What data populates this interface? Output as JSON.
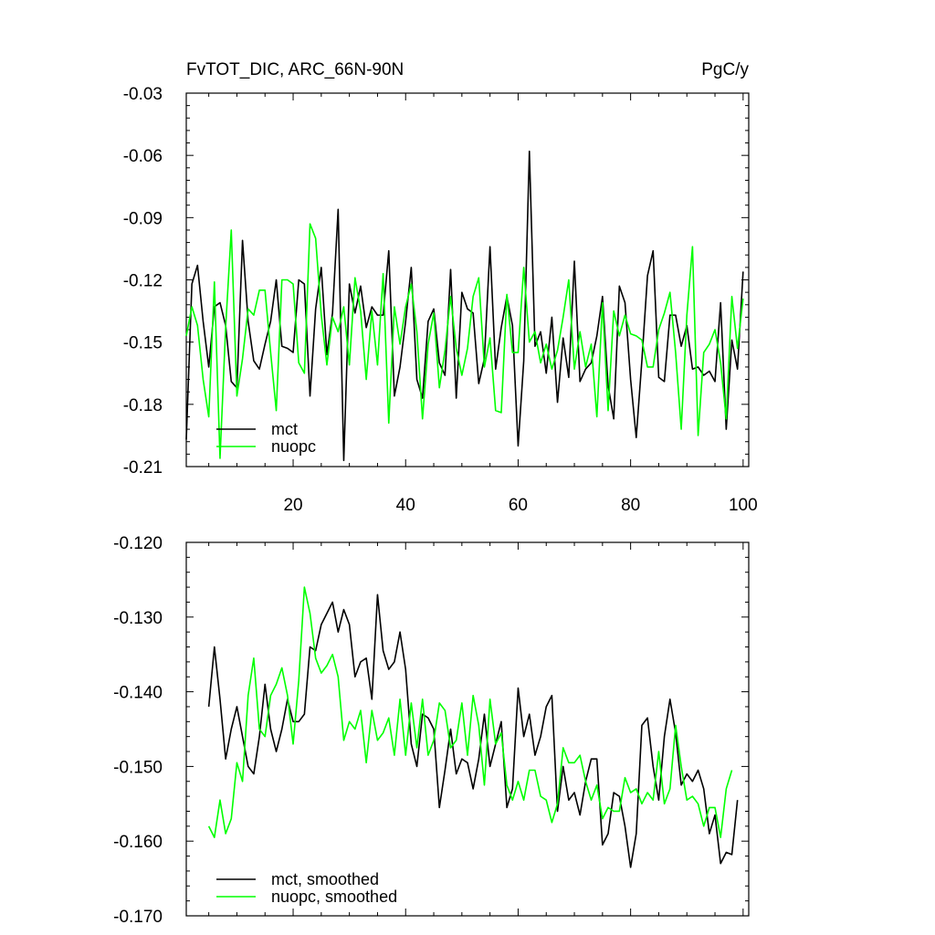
{
  "colors": {
    "mct": "#000000",
    "nuopc": "#00ff00",
    "axes": "#000000"
  },
  "chart_data": [
    {
      "type": "line",
      "title": "FvTOT_DIC, ARC_66N-90N",
      "units": "PgC/y",
      "xlim": [
        1,
        101
      ],
      "ylim": [
        -0.21,
        -0.03
      ],
      "yticks": [
        -0.21,
        -0.18,
        -0.15,
        -0.12,
        -0.09,
        -0.06,
        -0.03
      ],
      "ytick_labels": [
        "-0.21",
        "-0.18",
        "-0.15",
        "-0.12",
        "-0.09",
        "-0.06",
        "-0.03"
      ],
      "xticks": [
        20,
        40,
        60,
        80,
        100
      ],
      "xtick_labels": [
        "20",
        "40",
        "60",
        "80",
        "100"
      ],
      "legend_position": "bottom-left",
      "series": [
        {
          "name": "mct",
          "color": "#000000",
          "values": [
            -0.197,
            -0.122,
            -0.113,
            -0.14,
            -0.162,
            -0.133,
            -0.131,
            -0.142,
            -0.169,
            -0.172,
            -0.101,
            -0.14,
            -0.159,
            -0.163,
            -0.151,
            -0.14,
            -0.12,
            -0.152,
            -0.153,
            -0.155,
            -0.12,
            -0.122,
            -0.176,
            -0.134,
            -0.114,
            -0.156,
            -0.136,
            -0.086,
            -0.207,
            -0.122,
            -0.136,
            -0.123,
            -0.143,
            -0.133,
            -0.137,
            -0.137,
            -0.106,
            -0.176,
            -0.162,
            -0.14,
            -0.114,
            -0.168,
            -0.177,
            -0.14,
            -0.134,
            -0.16,
            -0.166,
            -0.115,
            -0.177,
            -0.126,
            -0.134,
            -0.136,
            -0.17,
            -0.158,
            -0.104,
            -0.163,
            -0.143,
            -0.128,
            -0.142,
            -0.2,
            -0.159,
            -0.058,
            -0.152,
            -0.145,
            -0.165,
            -0.138,
            -0.179,
            -0.148,
            -0.167,
            -0.111,
            -0.169,
            -0.163,
            -0.16,
            -0.147,
            -0.128,
            -0.171,
            -0.187,
            -0.123,
            -0.131,
            -0.168,
            -0.196,
            -0.159,
            -0.118,
            -0.106,
            -0.167,
            -0.169,
            -0.137,
            -0.137,
            -0.152,
            -0.142,
            -0.163,
            -0.162,
            -0.166,
            -0.164,
            -0.169,
            -0.131,
            -0.192,
            -0.149,
            -0.163,
            -0.116
          ]
        },
        {
          "name": "nuopc",
          "color": "#00ff00",
          "values": [
            -0.147,
            -0.133,
            -0.142,
            -0.168,
            -0.186,
            -0.121,
            -0.206,
            -0.143,
            -0.096,
            -0.176,
            -0.158,
            -0.134,
            -0.137,
            -0.125,
            -0.125,
            -0.155,
            -0.183,
            -0.12,
            -0.12,
            -0.122,
            -0.16,
            -0.165,
            -0.093,
            -0.1,
            -0.137,
            -0.161,
            -0.138,
            -0.145,
            -0.133,
            -0.161,
            -0.119,
            -0.135,
            -0.168,
            -0.135,
            -0.161,
            -0.117,
            -0.189,
            -0.133,
            -0.151,
            -0.133,
            -0.122,
            -0.145,
            -0.187,
            -0.151,
            -0.136,
            -0.172,
            -0.154,
            -0.128,
            -0.153,
            -0.166,
            -0.153,
            -0.128,
            -0.119,
            -0.162,
            -0.148,
            -0.183,
            -0.184,
            -0.127,
            -0.155,
            -0.155,
            -0.114,
            -0.15,
            -0.145,
            -0.16,
            -0.151,
            -0.163,
            -0.154,
            -0.138,
            -0.12,
            -0.163,
            -0.145,
            -0.162,
            -0.151,
            -0.186,
            -0.131,
            -0.183,
            -0.135,
            -0.147,
            -0.137,
            -0.146,
            -0.147,
            -0.149,
            -0.162,
            -0.162,
            -0.144,
            -0.136,
            -0.126,
            -0.155,
            -0.192,
            -0.137,
            -0.104,
            -0.195,
            -0.155,
            -0.151,
            -0.144,
            -0.16,
            -0.187,
            -0.128,
            -0.153,
            -0.129
          ]
        }
      ]
    },
    {
      "type": "line",
      "title": "",
      "xlim": [
        1,
        101
      ],
      "ylim": [
        -0.17,
        -0.12
      ],
      "yticks": [
        -0.17,
        -0.16,
        -0.15,
        -0.14,
        -0.13,
        -0.12
      ],
      "ytick_labels": [
        "-0.170",
        "-0.160",
        "-0.150",
        "-0.140",
        "-0.130",
        "-0.120"
      ],
      "xticks": [
        20,
        40,
        60,
        80,
        100
      ],
      "legend_position": "bottom-left",
      "series": [
        {
          "name": "mct, smoothed",
          "color": "#000000",
          "x_start": 5,
          "values": [
            -0.142,
            -0.134,
            -0.141,
            -0.149,
            -0.145,
            -0.142,
            -0.146,
            -0.15,
            -0.151,
            -0.146,
            -0.139,
            -0.145,
            -0.148,
            -0.145,
            -0.141,
            -0.144,
            -0.144,
            -0.143,
            -0.134,
            -0.1345,
            -0.131,
            -0.1295,
            -0.128,
            -0.132,
            -0.129,
            -0.131,
            -0.138,
            -0.136,
            -0.1355,
            -0.141,
            -0.127,
            -0.1345,
            -0.137,
            -0.136,
            -0.132,
            -0.137,
            -0.147,
            -0.15,
            -0.143,
            -0.1435,
            -0.145,
            -0.1555,
            -0.1505,
            -0.145,
            -0.151,
            -0.149,
            -0.1495,
            -0.153,
            -0.149,
            -0.143,
            -0.15,
            -0.147,
            -0.144,
            -0.1555,
            -0.153,
            -0.1395,
            -0.146,
            -0.143,
            -0.1485,
            -0.146,
            -0.142,
            -0.1405,
            -0.156,
            -0.15,
            -0.1545,
            -0.1535,
            -0.1565,
            -0.152,
            -0.149,
            -0.149,
            -0.1605,
            -0.159,
            -0.1535,
            -0.154,
            -0.158,
            -0.1635,
            -0.159,
            -0.1445,
            -0.1435,
            -0.15,
            -0.1545,
            -0.146,
            -0.141,
            -0.1455,
            -0.1525,
            -0.151,
            -0.152,
            -0.1505,
            -0.153,
            -0.159,
            -0.1565,
            -0.163,
            -0.1615,
            -0.1618,
            -0.1545
          ]
        },
        {
          "name": "nuopc, smoothed",
          "color": "#00ff00",
          "x_start": 5,
          "values": [
            -0.158,
            -0.1595,
            -0.1545,
            -0.159,
            -0.157,
            -0.1495,
            -0.152,
            -0.1405,
            -0.1355,
            -0.145,
            -0.146,
            -0.1405,
            -0.139,
            -0.1368,
            -0.1405,
            -0.147,
            -0.1385,
            -0.126,
            -0.1295,
            -0.1355,
            -0.1375,
            -0.1365,
            -0.135,
            -0.138,
            -0.1465,
            -0.144,
            -0.145,
            -0.1425,
            -0.1495,
            -0.1425,
            -0.1465,
            -0.1455,
            -0.1435,
            -0.1485,
            -0.141,
            -0.1485,
            -0.1415,
            -0.1475,
            -0.141,
            -0.1485,
            -0.1465,
            -0.1415,
            -0.1425,
            -0.1475,
            -0.1465,
            -0.1415,
            -0.1485,
            -0.1405,
            -0.1445,
            -0.1525,
            -0.141,
            -0.147,
            -0.1455,
            -0.1525,
            -0.1545,
            -0.152,
            -0.1545,
            -0.1505,
            -0.1505,
            -0.154,
            -0.1545,
            -0.1575,
            -0.155,
            -0.1475,
            -0.1495,
            -0.1495,
            -0.1485,
            -0.152,
            -0.1545,
            -0.1525,
            -0.157,
            -0.1555,
            -0.156,
            -0.156,
            -0.1515,
            -0.1535,
            -0.153,
            -0.155,
            -0.1535,
            -0.1545,
            -0.148,
            -0.155,
            -0.153,
            -0.1445,
            -0.15,
            -0.1545,
            -0.154,
            -0.155,
            -0.158,
            -0.1555,
            -0.1555,
            -0.1595,
            -0.153,
            -0.1505
          ]
        }
      ]
    }
  ]
}
